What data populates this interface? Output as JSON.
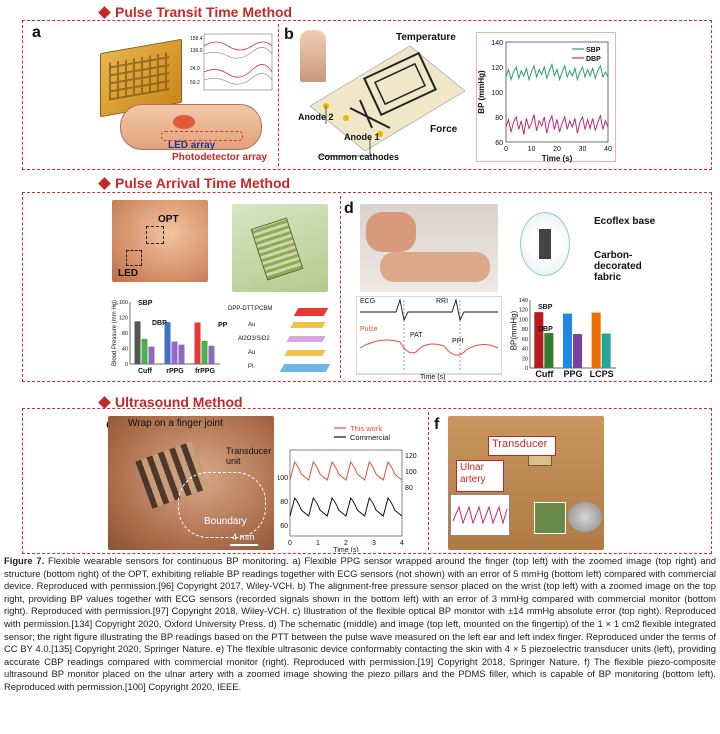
{
  "sections": {
    "ptt": {
      "title": "Pulse Transit Time Method"
    },
    "pat": {
      "title": "Pulse Arrival Time Method"
    },
    "us": {
      "title": "Ultrasound Method"
    }
  },
  "panels": {
    "a": {
      "label": "a",
      "led": "LED array",
      "pd": "Photodetector array",
      "mini_ylabels": [
        "158.4",
        "147.2",
        "136.0",
        "128.3",
        "24.0",
        "40.2",
        "59.2"
      ]
    },
    "b": {
      "label": "b",
      "temperature": "Temperature",
      "force": "Force",
      "anode2": "Anode 2",
      "anode1": "Anode 1",
      "cathodes": "Common cathodes"
    },
    "c": {
      "label": "c",
      "opt": "OPT",
      "led": "LED",
      "layers": [
        "DPP-DTT:PCBM",
        "Au",
        "Al2O3/SiO2",
        "Au",
        "PI"
      ],
      "ylabel": "Blood Pressure (mm Hg)",
      "sbp": "SBP",
      "dbp": "DBP",
      "pp": "PP"
    },
    "d": {
      "label": "d",
      "ecoflex": "Ecoflex base",
      "carbon": "Carbon-decorated fabric",
      "ecg": "ECG",
      "rri": "RRI",
      "pulse": "Pulse",
      "pat": "PAT",
      "ppi": "PPI",
      "time": "Time (s)",
      "ylabel": "BP(mmHg)",
      "sbp": "SBP",
      "dbp": "DBP"
    },
    "e": {
      "label": "e",
      "wrap": "Wrap on a finger joint",
      "transducer": "Transducer unit",
      "boundary": "Boundary",
      "scale": "4 mm"
    },
    "f": {
      "label": "f",
      "transducer": "Transducer",
      "artery": "Ulnar artery"
    }
  },
  "chart_data": [
    {
      "id": "b-bp-time",
      "type": "line",
      "xlabel": "Time (s)",
      "ylabel": "BP (mmHg)",
      "xlim": [
        0,
        40
      ],
      "ylim": [
        60,
        140
      ],
      "xticks": [
        0,
        10,
        20,
        30,
        40
      ],
      "yticks": [
        60,
        80,
        100,
        120,
        140
      ],
      "legend": "top-right",
      "series": [
        {
          "name": "SBP",
          "color": "#2e9e6a",
          "x": [
            0,
            1,
            2,
            3,
            4,
            5,
            6,
            7,
            8,
            9,
            10,
            11,
            12,
            13,
            14,
            15,
            16,
            17,
            18,
            19,
            20,
            21,
            22,
            23,
            24,
            25,
            26,
            27,
            28,
            29,
            30,
            31,
            32,
            33,
            34,
            35,
            36,
            37,
            38,
            39,
            40
          ],
          "y": [
            112,
            118,
            110,
            116,
            120,
            111,
            117,
            113,
            119,
            110,
            116,
            121,
            112,
            118,
            114,
            120,
            111,
            117,
            122,
            113,
            118,
            110,
            116,
            121,
            112,
            117,
            113,
            119,
            110,
            116,
            120,
            112,
            118,
            113,
            119,
            111,
            117,
            121,
            112,
            116,
            112
          ]
        },
        {
          "name": "DBP",
          "color": "#c2297a",
          "x": [
            0,
            1,
            2,
            3,
            4,
            5,
            6,
            7,
            8,
            9,
            10,
            11,
            12,
            13,
            14,
            15,
            16,
            17,
            18,
            19,
            20,
            21,
            22,
            23,
            24,
            25,
            26,
            27,
            28,
            29,
            30,
            31,
            32,
            33,
            34,
            35,
            36,
            37,
            38,
            39,
            40
          ],
          "y": [
            72,
            78,
            68,
            76,
            80,
            70,
            77,
            66,
            79,
            71,
            75,
            82,
            69,
            77,
            73,
            80,
            67,
            76,
            81,
            70,
            78,
            68,
            75,
            80,
            70,
            77,
            72,
            79,
            67,
            76,
            80,
            70,
            78,
            71,
            79,
            69,
            76,
            81,
            70,
            77,
            72
          ]
        }
      ]
    },
    {
      "id": "c-bp-bars",
      "type": "bar",
      "categories": [
        "Cuff",
        "rPPG",
        "frPPG"
      ],
      "ylim": [
        0,
        160
      ],
      "yticks": [
        0,
        40,
        80,
        120,
        160
      ],
      "series": [
        {
          "name": "SBP",
          "values": [
            110,
            108,
            107
          ]
        },
        {
          "name": "DBP",
          "values": [
            65,
            58,
            60
          ]
        },
        {
          "name": "PP",
          "values": [
            45,
            50,
            47
          ]
        }
      ]
    },
    {
      "id": "d-bp-bars",
      "type": "bar",
      "categories": [
        "Cuff",
        "PPG",
        "LCPS"
      ],
      "ylabel": "BP(mmHg)",
      "ylim": [
        0,
        140
      ],
      "yticks": [
        0,
        20,
        40,
        60,
        80,
        100,
        120,
        140
      ],
      "series": [
        {
          "name": "SBP",
          "values": [
            115,
            112,
            114
          ]
        },
        {
          "name": "DBP",
          "values": [
            72,
            70,
            71
          ]
        }
      ]
    },
    {
      "id": "e-waveforms",
      "type": "line",
      "xlabel": "Time (s)",
      "xlim": [
        0,
        4
      ],
      "xticks": [
        0,
        1,
        2,
        3,
        4
      ],
      "yticks_left": [
        60,
        80,
        100
      ],
      "yticks_right": [
        80,
        100,
        120
      ],
      "legend": "top-right",
      "series": [
        {
          "name": "This work",
          "color": "#e74c3c",
          "beats": 6
        },
        {
          "name": "Commercial",
          "color": "#111111",
          "beats": 6
        }
      ]
    }
  ],
  "caption": {
    "lead": "Figure 7.",
    "text": "Flexible wearable sensors for continuous BP monitoring. a) Flexible PPG sensor wrapped around the finger (top left) with the zoomed image (top right) and structure (bottom right) of the OPT, exhibiting reliable BP readings together with ECG sensors (not shown) with an error of 5 mmHg (bottom left) compared with commercial device. Reproduced with permission.[96] Copyright 2017, Wiley-VCH. b) The alignment-free pressure sensor placed on the wrist (top left) with a zoomed image on the top right, providing BP values together with ECG sensors (recorded signals shown in the bottom left) with an error of 3 mmHg compared with commercial monitor (bottom right). Reproduced with permission.[97] Copyright 2018, Wiley-VCH. c) Illustration of the flexible optical BP monitor with ±14 mmHg absolute error (top right). Reproduced with permission.[134] Copyright 2020, Oxford University Press. d) The schematic (middle) and image (top left, mounted on the fingertip) of the 1 × 1 cm2 flexible integrated sensor; the right figure illustrating the BP readings based on the PTT between the pulse wave measured on the left ear and left index finger. Reproduced under the terms of CC BY 4.0.[135] Copyright 2020, Springer Nature. e) The flexible ultrasonic device conformably contacting the skin with 4 × 5 piezoelectric transducer units (left), providing accurate CBP readings compared with commercial monitor (right). Reproduced with permission.[19] Copyright 2018, Springer Nature. f) The flexible piezo-composite ultrasound BP monitor placed on the ulnar artery with a zoomed image showing the piezo pillars and the PDMS filler, which is capable of BP monitoring (bottom left). Reproduced with permission.[100] Copyright 2020, IEEE."
  }
}
